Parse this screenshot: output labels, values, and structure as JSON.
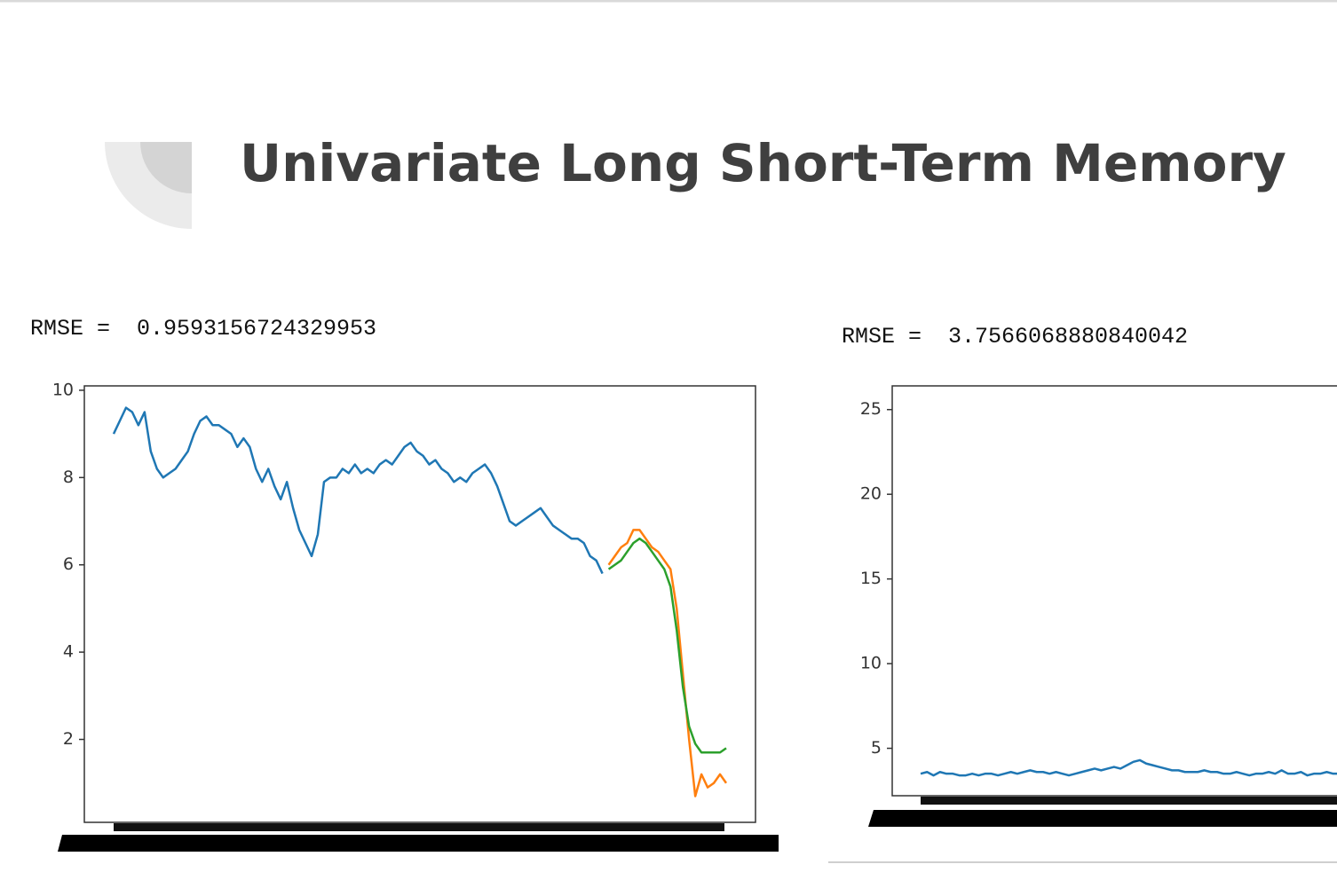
{
  "title": "Univariate Long Short-Term Memory",
  "chart_data": [
    {
      "type": "line",
      "annotation": "RMSE =  0.9593156724329953",
      "categories": [
        null,
        null,
        null,
        null,
        null,
        null,
        null,
        null,
        null,
        null,
        null,
        null,
        null,
        null,
        null,
        null,
        null,
        null,
        null,
        null,
        null,
        null,
        null,
        null,
        null,
        null,
        null,
        null,
        null,
        null,
        null,
        null,
        null,
        null,
        null,
        null,
        null,
        null,
        null,
        null,
        null,
        null,
        null,
        null,
        null,
        null,
        null,
        null,
        null,
        null,
        null,
        null,
        null,
        null,
        null,
        null,
        null,
        null,
        null,
        null,
        null,
        null,
        null,
        null,
        null,
        null,
        null,
        null,
        null,
        null,
        null,
        null,
        null,
        null,
        null,
        null,
        null,
        null,
        null,
        null,
        null,
        null,
        null,
        null,
        null,
        null,
        null,
        null,
        null,
        null,
        null,
        null,
        null,
        null,
        null,
        null,
        null,
        null,
        null,
        null
      ],
      "series": [
        {
          "color": "#1f77b4",
          "values": [
            9.0,
            9.3,
            9.6,
            9.5,
            9.2,
            9.5,
            8.6,
            8.2,
            8.0,
            8.1,
            8.2,
            8.4,
            8.6,
            9.0,
            9.3,
            9.4,
            9.2,
            9.2,
            9.1,
            9.0,
            8.7,
            8.9,
            8.7,
            8.2,
            7.9,
            8.2,
            7.8,
            7.5,
            7.9,
            7.3,
            6.8,
            6.5,
            6.2,
            6.7,
            7.9,
            8.0,
            8.0,
            8.2,
            8.1,
            8.3,
            8.1,
            8.2,
            8.1,
            8.3,
            8.4,
            8.3,
            8.5,
            8.7,
            8.8,
            8.6,
            8.5,
            8.3,
            8.4,
            8.2,
            8.1,
            7.9,
            8.0,
            7.9,
            8.1,
            8.2,
            8.3,
            8.1,
            7.8,
            7.4,
            7.0,
            6.9,
            7.0,
            7.1,
            7.2,
            7.3,
            7.1,
            6.9,
            6.8,
            6.7,
            6.6,
            6.6,
            6.5,
            6.2,
            6.1,
            5.8,
            null,
            null,
            null,
            null,
            null,
            null,
            null,
            null,
            null,
            null,
            null,
            null,
            null,
            null,
            null,
            null,
            null,
            null,
            null,
            null
          ]
        },
        {
          "color": "#ff7f0e",
          "values": [
            null,
            null,
            null,
            null,
            null,
            null,
            null,
            null,
            null,
            null,
            null,
            null,
            null,
            null,
            null,
            null,
            null,
            null,
            null,
            null,
            null,
            null,
            null,
            null,
            null,
            null,
            null,
            null,
            null,
            null,
            null,
            null,
            null,
            null,
            null,
            null,
            null,
            null,
            null,
            null,
            null,
            null,
            null,
            null,
            null,
            null,
            null,
            null,
            null,
            null,
            null,
            null,
            null,
            null,
            null,
            null,
            null,
            null,
            null,
            null,
            null,
            null,
            null,
            null,
            null,
            null,
            null,
            null,
            null,
            null,
            null,
            null,
            null,
            null,
            null,
            null,
            null,
            null,
            null,
            null,
            6.0,
            6.2,
            6.4,
            6.5,
            6.8,
            6.8,
            6.6,
            6.4,
            6.3,
            6.1,
            5.9,
            5.0,
            3.5,
            2.0,
            0.7,
            1.2,
            0.9,
            1.0,
            1.2,
            1.0
          ]
        },
        {
          "color": "#2ca02c",
          "values": [
            null,
            null,
            null,
            null,
            null,
            null,
            null,
            null,
            null,
            null,
            null,
            null,
            null,
            null,
            null,
            null,
            null,
            null,
            null,
            null,
            null,
            null,
            null,
            null,
            null,
            null,
            null,
            null,
            null,
            null,
            null,
            null,
            null,
            null,
            null,
            null,
            null,
            null,
            null,
            null,
            null,
            null,
            null,
            null,
            null,
            null,
            null,
            null,
            null,
            null,
            null,
            null,
            null,
            null,
            null,
            null,
            null,
            null,
            null,
            null,
            null,
            null,
            null,
            null,
            null,
            null,
            null,
            null,
            null,
            null,
            null,
            null,
            null,
            null,
            null,
            null,
            null,
            null,
            null,
            null,
            5.9,
            6.0,
            6.1,
            6.3,
            6.5,
            6.6,
            6.5,
            6.3,
            6.1,
            5.9,
            5.5,
            4.5,
            3.2,
            2.3,
            1.9,
            1.7,
            1.7,
            1.7,
            1.7,
            1.8
          ]
        }
      ],
      "ylim": [
        0.1,
        10.1
      ],
      "yticks": [
        2,
        4,
        6,
        8,
        10
      ]
    },
    {
      "type": "line",
      "annotation": "RMSE =  3.7566068880840042",
      "categories": [
        null,
        null,
        null,
        null,
        null,
        null,
        null,
        null,
        null,
        null,
        null,
        null,
        null,
        null,
        null,
        null,
        null,
        null,
        null,
        null,
        null,
        null,
        null,
        null,
        null,
        null,
        null,
        null,
        null,
        null,
        null,
        null,
        null,
        null,
        null,
        null,
        null,
        null,
        null,
        null,
        null,
        null,
        null,
        null,
        null,
        null,
        null,
        null,
        null,
        null,
        null,
        null,
        null,
        null,
        null,
        null,
        null,
        null,
        null,
        null,
        null,
        null,
        null,
        null,
        null,
        null,
        null,
        null,
        null,
        null
      ],
      "series": [
        {
          "color": "#1f77b4",
          "values": [
            3.5,
            3.6,
            3.4,
            3.6,
            3.5,
            3.5,
            3.4,
            3.4,
            3.5,
            3.4,
            3.5,
            3.5,
            3.4,
            3.5,
            3.6,
            3.5,
            3.6,
            3.7,
            3.6,
            3.6,
            3.5,
            3.6,
            3.5,
            3.4,
            3.5,
            3.6,
            3.7,
            3.8,
            3.7,
            3.8,
            3.9,
            3.8,
            4.0,
            4.2,
            4.3,
            4.1,
            4.0,
            3.9,
            3.8,
            3.7,
            3.7,
            3.6,
            3.6,
            3.6,
            3.7,
            3.6,
            3.6,
            3.5,
            3.5,
            3.6,
            3.5,
            3.4,
            3.5,
            3.5,
            3.6,
            3.5,
            3.7,
            3.5,
            3.5,
            3.6,
            3.4,
            3.5,
            3.5,
            3.6,
            3.5,
            3.5,
            3.6,
            3.5,
            3.4,
            3.5
          ]
        }
      ],
      "ylim": [
        2.2,
        26.4
      ],
      "yticks": [
        5,
        10,
        15,
        20,
        25
      ]
    }
  ]
}
